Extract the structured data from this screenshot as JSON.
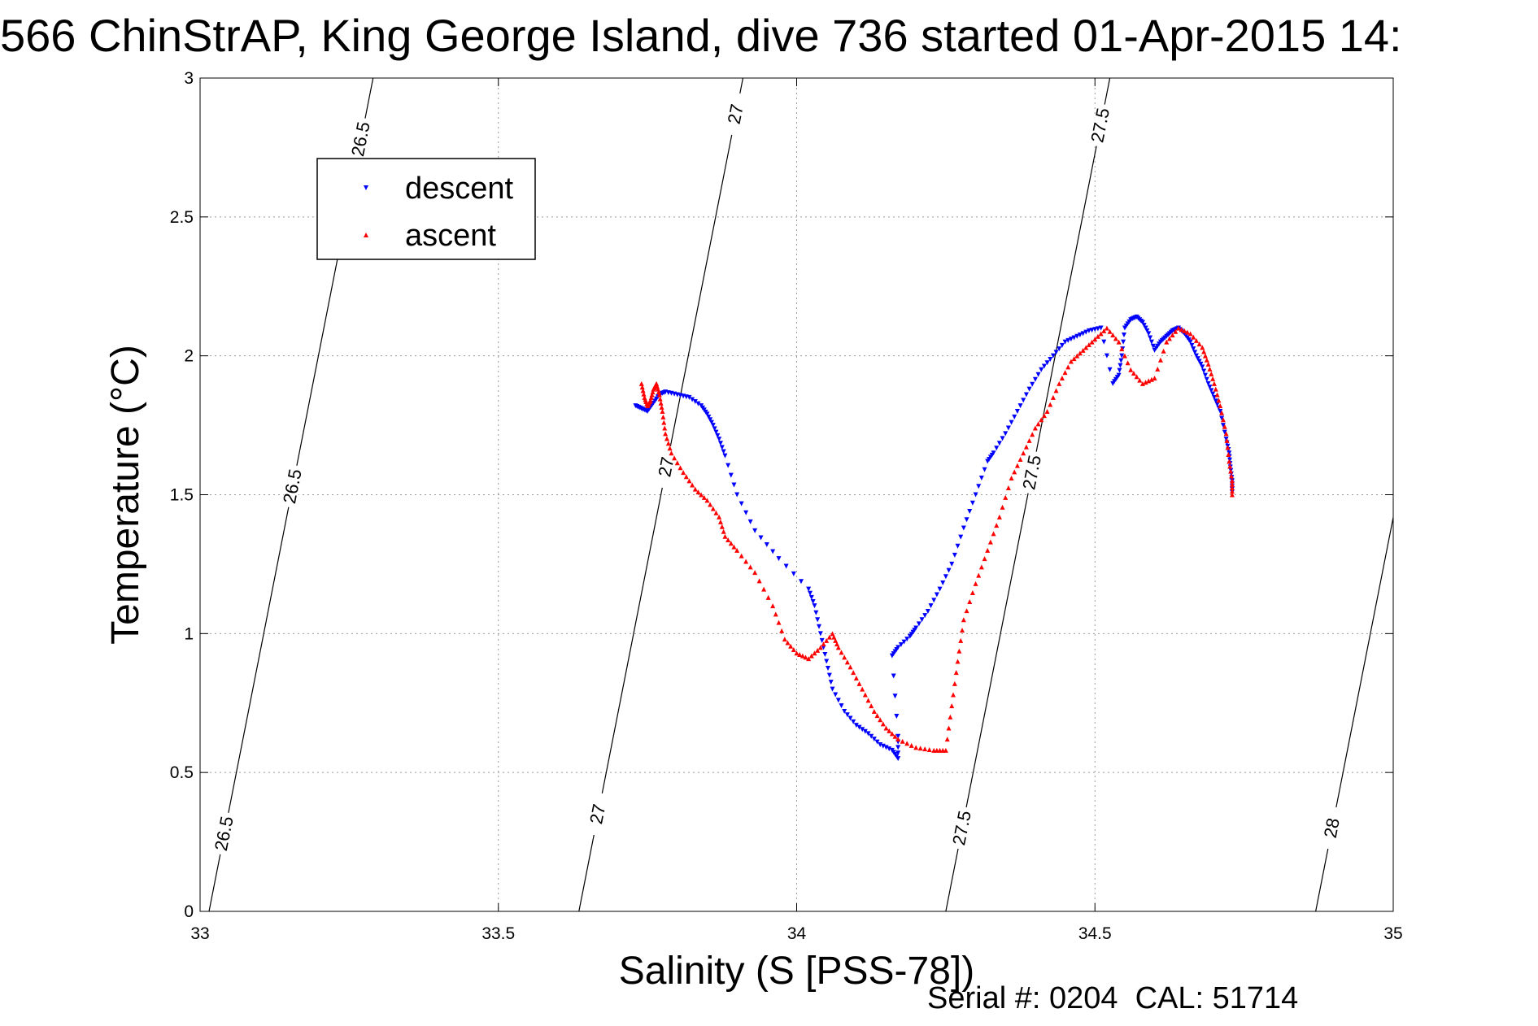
{
  "chart_data": {
    "type": "scatter",
    "title": "566 ChinStrAP, King George Island, dive 736 started 01-Apr-2015 14:",
    "xlabel": "Salinity (S [PSS-78])",
    "ylabel": "Temperature (°C)",
    "xlim": [
      33,
      35
    ],
    "ylim": [
      0,
      3
    ],
    "xticks": [
      "33",
      "33.5",
      "34",
      "34.5",
      "35"
    ],
    "yticks": [
      "0",
      "0.5",
      "1",
      "1.5",
      "2",
      "2.5",
      "3"
    ],
    "grid": true,
    "legend_position": "top-left",
    "footer": "Serial #: 0204  CAL: 51714",
    "isopycnals": [
      {
        "label": "26.5",
        "s_at_t0": 33.015,
        "s_at_t3": 33.29,
        "label_t": [
          0.28,
          1.53,
          2.78
        ]
      },
      {
        "label": "27",
        "s_at_t0": 33.635,
        "s_at_t3": 33.91,
        "label_t": [
          0.35,
          1.6,
          2.87
        ]
      },
      {
        "label": "27.5",
        "s_at_t0": 34.25,
        "s_at_t3": 34.525,
        "label_t": [
          0.3,
          1.58,
          2.83
        ]
      },
      {
        "label": "28",
        "s_at_t0": 34.87,
        "s_at_t3": 35.145,
        "label_t": [
          0.3,
          1.5
        ]
      }
    ],
    "series": [
      {
        "name": "descent",
        "color": "#0000ff",
        "marker": "triangle-down",
        "x": [
          33.73,
          33.74,
          33.75,
          33.76,
          33.77,
          33.78,
          33.8,
          33.82,
          33.84,
          33.85,
          33.86,
          33.87,
          33.88,
          33.9,
          33.93,
          33.97,
          34.02,
          34.03,
          34.04,
          34.05,
          34.06,
          34.08,
          34.1,
          34.12,
          34.14,
          34.16,
          34.17,
          34.17,
          34.16,
          34.17,
          34.19,
          34.2,
          34.22,
          34.24,
          34.26,
          34.28,
          34.3,
          34.32,
          34.33,
          34.35,
          34.37,
          34.39,
          34.41,
          34.43,
          34.45,
          34.47,
          34.49,
          34.51,
          34.53,
          34.54,
          34.545,
          34.55,
          34.56,
          34.57,
          34.58,
          34.59,
          34.6,
          34.61,
          34.62,
          34.63,
          34.64,
          34.65,
          34.66,
          34.67,
          34.68,
          34.69,
          34.7,
          34.71,
          34.72,
          34.725,
          34.727,
          34.73,
          34.73
        ],
        "y": [
          1.82,
          1.81,
          1.8,
          1.83,
          1.86,
          1.87,
          1.86,
          1.85,
          1.82,
          1.79,
          1.75,
          1.7,
          1.64,
          1.5,
          1.37,
          1.27,
          1.16,
          1.1,
          1.0,
          0.9,
          0.8,
          0.72,
          0.67,
          0.64,
          0.6,
          0.58,
          0.55,
          0.63,
          0.92,
          0.95,
          0.99,
          1.02,
          1.08,
          1.16,
          1.25,
          1.38,
          1.5,
          1.62,
          1.65,
          1.72,
          1.8,
          1.88,
          1.95,
          2.0,
          2.05,
          2.07,
          2.09,
          2.1,
          1.9,
          1.93,
          2.0,
          2.1,
          2.13,
          2.14,
          2.12,
          2.08,
          2.02,
          2.05,
          2.07,
          2.09,
          2.1,
          2.08,
          2.05,
          2.0,
          1.96,
          1.9,
          1.85,
          1.8,
          1.7,
          1.65,
          1.6,
          1.55,
          1.51
        ]
      },
      {
        "name": "ascent",
        "color": "#ff0000",
        "marker": "triangle-up",
        "x": [
          33.74,
          33.745,
          33.75,
          33.755,
          33.76,
          33.765,
          33.77,
          33.775,
          33.78,
          33.79,
          33.81,
          33.83,
          33.85,
          33.87,
          33.88,
          33.9,
          33.93,
          33.96,
          33.98,
          34.0,
          34.02,
          34.04,
          34.06,
          34.07,
          34.09,
          34.11,
          34.13,
          34.15,
          34.17,
          34.2,
          34.23,
          34.25,
          34.26,
          34.27,
          34.28,
          34.3,
          34.32,
          34.34,
          34.36,
          34.38,
          34.4,
          34.42,
          34.44,
          34.46,
          34.48,
          34.5,
          34.52,
          34.54,
          34.56,
          34.58,
          34.6,
          34.62,
          34.64,
          34.66,
          34.68,
          34.69,
          34.7,
          34.71,
          34.72,
          34.725,
          34.73,
          34.73
        ],
        "y": [
          1.9,
          1.85,
          1.82,
          1.84,
          1.88,
          1.9,
          1.86,
          1.8,
          1.72,
          1.65,
          1.58,
          1.52,
          1.48,
          1.42,
          1.35,
          1.3,
          1.22,
          1.1,
          0.98,
          0.93,
          0.91,
          0.95,
          1.0,
          0.95,
          0.88,
          0.8,
          0.72,
          0.66,
          0.62,
          0.59,
          0.58,
          0.58,
          0.74,
          0.9,
          1.05,
          1.18,
          1.3,
          1.42,
          1.56,
          1.65,
          1.74,
          1.8,
          1.9,
          1.98,
          2.02,
          2.06,
          2.1,
          2.05,
          1.95,
          1.9,
          1.92,
          2.05,
          2.1,
          2.08,
          2.03,
          1.97,
          1.9,
          1.82,
          1.72,
          1.62,
          1.55,
          1.5
        ]
      }
    ]
  }
}
